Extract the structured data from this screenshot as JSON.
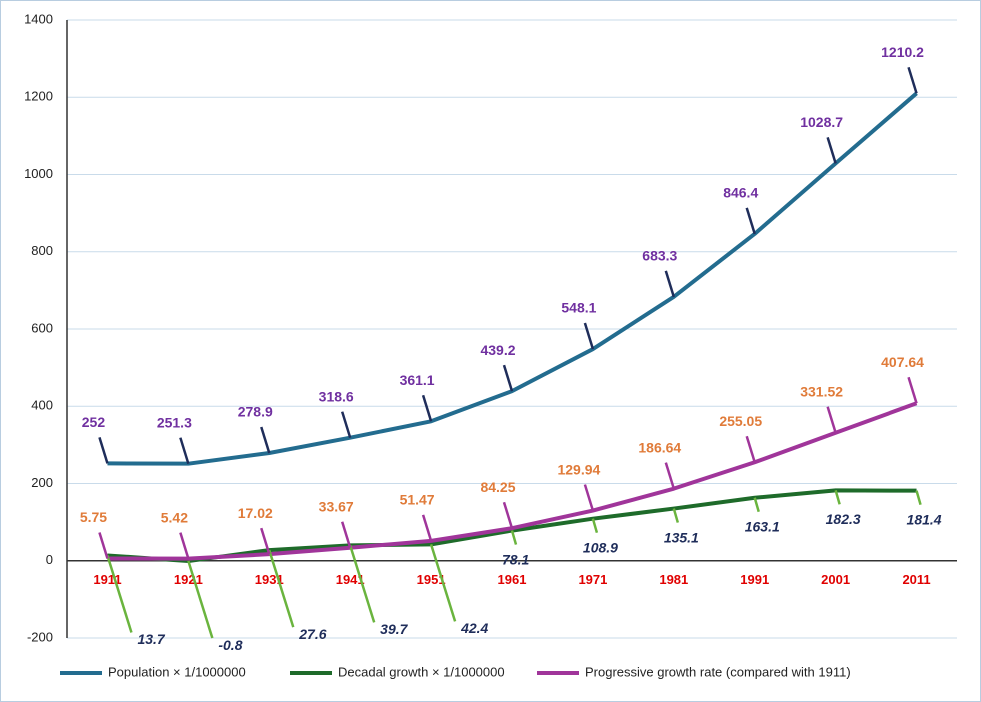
{
  "chart_data": {
    "type": "line",
    "categories": [
      "1911",
      "1921",
      "1931",
      "1941",
      "1951",
      "1961",
      "1971",
      "1981",
      "1991",
      "2001",
      "2011"
    ],
    "series": [
      {
        "name": "Population × 1/1000000",
        "color": "#236c8f",
        "label_color": "#7030a0",
        "values": [
          252,
          251.3,
          278.9,
          318.6,
          361.1,
          439.2,
          548.1,
          683.3,
          846.4,
          1028.7,
          1210.2
        ]
      },
      {
        "name": "Decadal growth × 1/1000000",
        "color": "#1e6b2a",
        "label_color": "#1f2d5a",
        "values": [
          13.7,
          -0.8,
          27.6,
          39.7,
          42.4,
          78.1,
          108.9,
          135.1,
          163.1,
          182.3,
          181.4
        ]
      },
      {
        "name": "Progressive growth rate (compared with 1911)",
        "color": "#a0359a",
        "label_color": "#e07b39",
        "values": [
          5.75,
          5.42,
          17.02,
          33.67,
          51.47,
          84.25,
          129.94,
          186.64,
          255.05,
          331.52,
          407.64
        ]
      }
    ],
    "ylim": [
      -200,
      1400
    ],
    "yticks": [
      -200,
      0,
      200,
      400,
      600,
      800,
      1000,
      1200,
      1400
    ],
    "grid": true,
    "legend": "bottom"
  }
}
